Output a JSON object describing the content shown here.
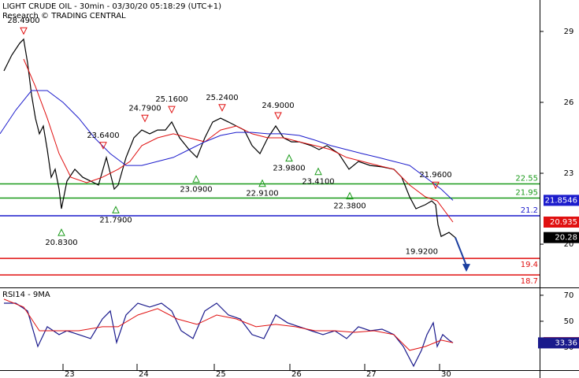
{
  "chart_data": [
    {
      "type": "line",
      "title": "LIGHT CRUDE OIL - 30min - 03/30/20 05:18:29 (UTC+1)",
      "subtitle": "Research © TRADING CENTRAL",
      "xlim": [
        0,
        342.5
      ],
      "ylim": [
        18.17,
        30.33
      ],
      "yticks": [
        29,
        26,
        23,
        20
      ],
      "xticks": [
        {
          "value": 40,
          "label": "23"
        },
        {
          "value": 87,
          "label": "24"
        },
        {
          "value": 136,
          "label": "25"
        },
        {
          "value": 184,
          "label": "26"
        },
        {
          "value": 231.5,
          "label": "27"
        },
        {
          "value": 279,
          "label": "30"
        }
      ],
      "series": [
        {
          "color": "#000000",
          "x": [
            2.5,
            7.5,
            12.5,
            15,
            17.5,
            20,
            22.5,
            25,
            27.5,
            30,
            32.5,
            35,
            37.5,
            39,
            42.5,
            47.5,
            52.5,
            57.5,
            62.5,
            67.5,
            72.5,
            75,
            80,
            85,
            90,
            95,
            100,
            105,
            109,
            114,
            120,
            125,
            130,
            135,
            140,
            145,
            150,
            155,
            160,
            165,
            170,
            175,
            180,
            185,
            190,
            197.5,
            202.5,
            207.5,
            215,
            221.5,
            227.5,
            235,
            242.5,
            250,
            255,
            260,
            264,
            270,
            274,
            276.5,
            278,
            280,
            285,
            289
          ],
          "values": [
            27.33,
            28.0,
            28.5,
            28.67,
            27.67,
            26.33,
            25.33,
            24.67,
            25.0,
            24.0,
            22.83,
            23.17,
            22.33,
            21.5,
            22.67,
            23.17,
            22.83,
            22.67,
            22.5,
            23.67,
            22.33,
            22.5,
            23.67,
            24.5,
            24.83,
            24.67,
            24.83,
            24.83,
            25.17,
            24.5,
            24.0,
            23.67,
            24.5,
            25.17,
            25.33,
            25.17,
            25.0,
            24.83,
            24.17,
            23.83,
            24.5,
            25.0,
            24.5,
            24.33,
            24.33,
            24.17,
            24.0,
            24.17,
            23.83,
            23.17,
            23.5,
            23.33,
            23.27,
            23.17,
            22.83,
            22.0,
            21.5,
            21.67,
            21.83,
            21.67,
            20.83,
            20.33,
            20.5,
            20.28
          ]
        },
        {
          "color": "#e01010",
          "x": [
            15,
            22.5,
            30,
            37.5,
            45,
            55,
            65,
            75,
            82.5,
            90,
            100,
            110,
            120,
            130,
            140,
            150,
            160,
            170,
            180,
            190,
            200,
            210,
            220,
            230,
            240,
            250,
            260,
            270,
            277.5,
            287.5
          ],
          "values": [
            27.83,
            26.67,
            25.33,
            23.83,
            22.83,
            22.6,
            22.83,
            23.17,
            23.5,
            24.17,
            24.5,
            24.67,
            24.5,
            24.33,
            24.83,
            25.0,
            24.67,
            24.5,
            24.5,
            24.33,
            24.17,
            24.0,
            23.67,
            23.5,
            23.33,
            23.17,
            22.5,
            22.0,
            21.83,
            20.935
          ]
        },
        {
          "color": "#1c1ccc",
          "x": [
            0,
            10,
            20,
            30,
            40,
            50,
            60,
            70,
            80,
            90,
            100,
            110,
            120,
            130,
            140,
            150,
            160,
            170,
            180,
            190,
            200,
            210,
            220,
            230,
            240,
            250,
            260,
            270,
            280,
            287.5
          ],
          "values": [
            24.67,
            25.67,
            26.5,
            26.5,
            26.0,
            25.33,
            24.5,
            23.83,
            23.33,
            23.33,
            23.5,
            23.67,
            24.0,
            24.33,
            24.6,
            24.73,
            24.73,
            24.67,
            24.67,
            24.6,
            24.4,
            24.17,
            24.0,
            23.83,
            23.67,
            23.5,
            23.33,
            22.83,
            22.33,
            21.8546
          ]
        }
      ],
      "levels": [
        {
          "value": 22.55,
          "color": "#1a9a1a"
        },
        {
          "value": 21.95,
          "color": "#1a9a1a"
        },
        {
          "value": 21.2,
          "color": "#1c1ccc"
        },
        {
          "value": 19.4,
          "color": "#e01010"
        },
        {
          "value": 18.7,
          "color": "#e01010"
        }
      ],
      "annotations": [
        {
          "direction": "down",
          "x": 15,
          "value": 28.49,
          "label": "28.4900"
        },
        {
          "direction": "down",
          "x": 65.5,
          "value": 23.64,
          "label": "23.6400"
        },
        {
          "direction": "down",
          "x": 92,
          "value": 24.79,
          "label": "24.7900"
        },
        {
          "direction": "down",
          "x": 109,
          "value": 25.16,
          "label": "25.1600"
        },
        {
          "direction": "down",
          "x": 141,
          "value": 25.24,
          "label": "25.2400"
        },
        {
          "direction": "down",
          "x": 176.5,
          "value": 24.9,
          "label": "24.9000"
        },
        {
          "direction": "down",
          "x": 276.5,
          "value": 21.96,
          "label": "21.9600"
        },
        {
          "direction": "up",
          "x": 39,
          "value": 20.83,
          "label": "20.8300"
        },
        {
          "direction": "up",
          "x": 73.5,
          "value": 21.79,
          "label": "21.7900"
        },
        {
          "direction": "up",
          "x": 124.5,
          "value": 23.09,
          "label": "23.0900"
        },
        {
          "direction": "up",
          "x": 166.5,
          "value": 22.91,
          "label": "22.9100"
        },
        {
          "direction": "up",
          "x": 183.5,
          "value": 23.98,
          "label": "23.9800"
        },
        {
          "direction": "up",
          "x": 202,
          "value": 23.41,
          "label": "23.4100"
        },
        {
          "direction": "up",
          "x": 222,
          "value": 22.38,
          "label": "22.3800"
        },
        {
          "direction": "none",
          "x": 279,
          "value": 19.92,
          "label": "19.9200"
        }
      ],
      "forecast_arrow": {
        "color": "#1c3fa0",
        "x": [
          289,
          296
        ],
        "values": [
          20.28,
          18.9
        ]
      }
    },
    {
      "type": "line",
      "title": "RSI14 - 9MA",
      "xlim": [
        0,
        342.5
      ],
      "ylim": [
        12.4,
        74.8
      ],
      "yticks": [
        70,
        50,
        30
      ],
      "series": [
        {
          "color": "#1a1a8c",
          "x": [
            2.5,
            10,
            17.5,
            24,
            30,
            37.5,
            42.5,
            50,
            57.5,
            65,
            70,
            74,
            80,
            87.5,
            95,
            102.5,
            109,
            115,
            122.5,
            130,
            137.5,
            145,
            152.5,
            160,
            167.5,
            175,
            182.5,
            190,
            197.5,
            205,
            212.5,
            220,
            227.5,
            235,
            242.5,
            250,
            256,
            262.5,
            267.5,
            271,
            275,
            277.5,
            281,
            285,
            287.5
          ],
          "values": [
            63.9,
            63.9,
            57.9,
            30.6,
            45.8,
            39.7,
            42.7,
            39.7,
            36.7,
            51.8,
            57.9,
            33.6,
            54.8,
            63.9,
            60.9,
            63.9,
            57.9,
            42.7,
            36.7,
            57.9,
            63.9,
            54.8,
            51.8,
            39.7,
            36.7,
            54.8,
            48.8,
            45.8,
            42.7,
            39.7,
            42.7,
            36.7,
            45.8,
            42.7,
            43.9,
            39.7,
            30.6,
            15.5,
            27.6,
            39.7,
            48.8,
            30.6,
            39.7,
            35.5,
            33.36
          ]
        },
        {
          "color": "#e01010",
          "x": [
            2.5,
            15,
            25,
            35,
            50,
            65,
            75,
            87.5,
            100,
            112.5,
            125,
            137.5,
            150,
            162.5,
            175,
            187.5,
            200,
            212.5,
            225,
            237.5,
            250,
            260,
            270,
            280,
            287.5
          ],
          "values": [
            67,
            60.9,
            42.7,
            42.7,
            42.7,
            45.8,
            45.8,
            54.8,
            59.7,
            51.8,
            47.6,
            54.8,
            51.8,
            45.8,
            47.6,
            45.8,
            42.7,
            42.7,
            41.5,
            42.7,
            39.7,
            27.6,
            30.6,
            35.5,
            33.5467
          ]
        }
      ]
    }
  ]
}
